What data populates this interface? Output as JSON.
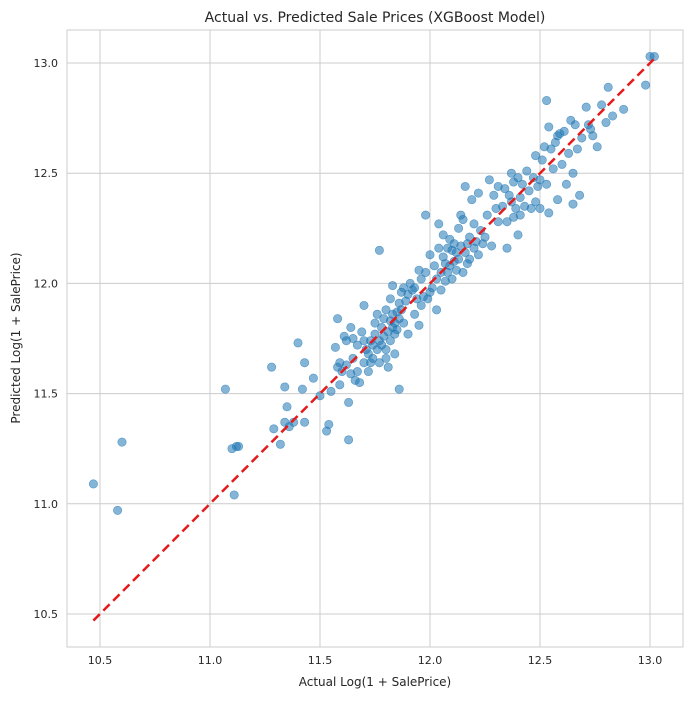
{
  "chart_data": {
    "type": "scatter",
    "title": "Actual vs. Predicted Sale Prices (XGBoost Model)",
    "xlabel": "Actual Log(1 + SalePrice)",
    "ylabel": "Predicted Log(1 + SalePrice)",
    "xlim": [
      10.35,
      13.15
    ],
    "ylim": [
      10.35,
      13.15
    ],
    "xticks": [
      "10.5",
      "11.0",
      "11.5",
      "12.0",
      "12.5",
      "13.0"
    ],
    "yticks": [
      "10.5",
      "11.0",
      "11.5",
      "12.0",
      "12.5",
      "13.0"
    ],
    "grid": true,
    "series": [
      {
        "marker": "circle",
        "color": "#1f77b4",
        "alpha": 0.55,
        "points": [
          [
            10.47,
            11.09
          ],
          [
            10.58,
            10.97
          ],
          [
            10.6,
            11.28
          ],
          [
            11.07,
            11.52
          ],
          [
            11.1,
            11.25
          ],
          [
            11.11,
            11.04
          ],
          [
            11.12,
            11.26
          ],
          [
            11.13,
            11.26
          ],
          [
            11.28,
            11.62
          ],
          [
            11.29,
            11.34
          ],
          [
            11.32,
            11.27
          ],
          [
            11.34,
            11.53
          ],
          [
            11.34,
            11.37
          ],
          [
            11.35,
            11.44
          ],
          [
            11.36,
            11.35
          ],
          [
            11.38,
            11.37
          ],
          [
            11.4,
            11.73
          ],
          [
            11.42,
            11.52
          ],
          [
            11.43,
            11.64
          ],
          [
            11.43,
            11.37
          ],
          [
            11.47,
            11.57
          ],
          [
            11.5,
            11.49
          ],
          [
            11.53,
            11.33
          ],
          [
            11.54,
            11.36
          ],
          [
            11.55,
            11.51
          ],
          [
            11.57,
            11.71
          ],
          [
            11.58,
            11.84
          ],
          [
            11.58,
            11.62
          ],
          [
            11.59,
            11.64
          ],
          [
            11.59,
            11.54
          ],
          [
            11.6,
            11.6
          ],
          [
            11.61,
            11.76
          ],
          [
            11.62,
            11.74
          ],
          [
            11.62,
            11.63
          ],
          [
            11.63,
            11.46
          ],
          [
            11.63,
            11.29
          ],
          [
            11.64,
            11.8
          ],
          [
            11.64,
            11.59
          ],
          [
            11.65,
            11.75
          ],
          [
            11.65,
            11.66
          ],
          [
            11.66,
            11.56
          ],
          [
            11.67,
            11.72
          ],
          [
            11.67,
            11.6
          ],
          [
            11.68,
            11.55
          ],
          [
            11.69,
            11.78
          ],
          [
            11.7,
            11.74
          ],
          [
            11.7,
            11.9
          ],
          [
            11.7,
            11.64
          ],
          [
            11.71,
            11.7
          ],
          [
            11.72,
            11.68
          ],
          [
            11.72,
            11.6
          ],
          [
            11.73,
            11.74
          ],
          [
            11.73,
            11.64
          ],
          [
            11.74,
            11.72
          ],
          [
            11.74,
            11.66
          ],
          [
            11.75,
            11.82
          ],
          [
            11.75,
            11.77
          ],
          [
            11.76,
            11.7
          ],
          [
            11.76,
            11.86
          ],
          [
            11.77,
            11.74
          ],
          [
            11.77,
            11.64
          ],
          [
            11.77,
            12.15
          ],
          [
            11.78,
            11.8
          ],
          [
            11.78,
            11.72
          ],
          [
            11.79,
            11.76
          ],
          [
            11.79,
            11.84
          ],
          [
            11.8,
            11.88
          ],
          [
            11.8,
            11.7
          ],
          [
            11.8,
            11.66
          ],
          [
            11.81,
            11.62
          ],
          [
            11.81,
            11.78
          ],
          [
            11.82,
            11.83
          ],
          [
            11.82,
            11.74
          ],
          [
            11.82,
            11.93
          ],
          [
            11.83,
            11.8
          ],
          [
            11.83,
            11.86
          ],
          [
            11.83,
            11.99
          ],
          [
            11.84,
            11.77
          ],
          [
            11.84,
            11.82
          ],
          [
            11.84,
            11.68
          ],
          [
            11.85,
            11.79
          ],
          [
            11.85,
            11.87
          ],
          [
            11.86,
            11.84
          ],
          [
            11.86,
            11.52
          ],
          [
            11.86,
            11.91
          ],
          [
            11.87,
            11.88
          ],
          [
            11.87,
            11.96
          ],
          [
            11.88,
            11.82
          ],
          [
            11.88,
            11.98
          ],
          [
            11.89,
            11.92
          ],
          [
            11.9,
            11.95
          ],
          [
            11.9,
            11.77
          ],
          [
            11.91,
            12.0
          ],
          [
            11.92,
            11.97
          ],
          [
            11.93,
            11.86
          ],
          [
            11.93,
            11.98
          ],
          [
            11.94,
            11.93
          ],
          [
            11.95,
            11.81
          ],
          [
            11.95,
            12.06
          ],
          [
            11.96,
            11.9
          ],
          [
            11.96,
            12.02
          ],
          [
            11.97,
            11.94
          ],
          [
            11.98,
            12.05
          ],
          [
            11.98,
            12.31
          ],
          [
            11.99,
            11.93
          ],
          [
            12.0,
            11.96
          ],
          [
            12.0,
            12.13
          ],
          [
            12.01,
            11.98
          ],
          [
            12.02,
            12.08
          ],
          [
            12.03,
            11.88
          ],
          [
            12.03,
            12.02
          ],
          [
            12.04,
            12.16
          ],
          [
            12.04,
            12.27
          ],
          [
            12.05,
            12.05
          ],
          [
            12.05,
            11.97
          ],
          [
            12.06,
            12.12
          ],
          [
            12.06,
            12.22
          ],
          [
            12.07,
            12.01
          ],
          [
            12.07,
            12.09
          ],
          [
            12.08,
            12.16
          ],
          [
            12.08,
            12.05
          ],
          [
            12.09,
            12.2
          ],
          [
            12.09,
            12.08
          ],
          [
            12.1,
            12.15
          ],
          [
            12.1,
            12.02
          ],
          [
            12.11,
            12.1
          ],
          [
            12.11,
            12.18
          ],
          [
            12.12,
            12.06
          ],
          [
            12.12,
            12.14
          ],
          [
            12.13,
            12.25
          ],
          [
            12.13,
            12.11
          ],
          [
            12.14,
            12.31
          ],
          [
            12.14,
            12.17
          ],
          [
            12.15,
            12.29
          ],
          [
            12.15,
            12.05
          ],
          [
            12.16,
            12.14
          ],
          [
            12.16,
            12.44
          ],
          [
            12.17,
            12.18
          ],
          [
            12.17,
            12.09
          ],
          [
            12.18,
            12.21
          ],
          [
            12.18,
            12.11
          ],
          [
            12.19,
            12.38
          ],
          [
            12.2,
            12.16
          ],
          [
            12.2,
            12.27
          ],
          [
            12.21,
            12.19
          ],
          [
            12.22,
            12.41
          ],
          [
            12.22,
            12.13
          ],
          [
            12.23,
            12.24
          ],
          [
            12.24,
            12.18
          ],
          [
            12.25,
            12.21
          ],
          [
            12.26,
            12.31
          ],
          [
            12.27,
            12.47
          ],
          [
            12.28,
            12.17
          ],
          [
            12.29,
            12.4
          ],
          [
            12.3,
            12.34
          ],
          [
            12.31,
            12.28
          ],
          [
            12.31,
            12.44
          ],
          [
            12.33,
            12.35
          ],
          [
            12.34,
            12.43
          ],
          [
            12.35,
            12.16
          ],
          [
            12.35,
            12.28
          ],
          [
            12.36,
            12.4
          ],
          [
            12.37,
            12.5
          ],
          [
            12.37,
            12.37
          ],
          [
            12.38,
            12.3
          ],
          [
            12.38,
            12.46
          ],
          [
            12.39,
            12.34
          ],
          [
            12.4,
            12.22
          ],
          [
            12.4,
            12.48
          ],
          [
            12.41,
            12.39
          ],
          [
            12.41,
            12.31
          ],
          [
            12.42,
            12.45
          ],
          [
            12.43,
            12.35
          ],
          [
            12.44,
            12.51
          ],
          [
            12.45,
            12.42
          ],
          [
            12.46,
            12.34
          ],
          [
            12.47,
            12.48
          ],
          [
            12.48,
            12.58
          ],
          [
            12.48,
            12.37
          ],
          [
            12.49,
            12.44
          ],
          [
            12.5,
            12.34
          ],
          [
            12.5,
            12.47
          ],
          [
            12.51,
            12.56
          ],
          [
            12.52,
            12.62
          ],
          [
            12.53,
            12.45
          ],
          [
            12.53,
            12.83
          ],
          [
            12.54,
            12.71
          ],
          [
            12.54,
            12.32
          ],
          [
            12.55,
            12.61
          ],
          [
            12.56,
            12.52
          ],
          [
            12.57,
            12.64
          ],
          [
            12.58,
            12.38
          ],
          [
            12.58,
            12.67
          ],
          [
            12.59,
            12.68
          ],
          [
            12.6,
            12.54
          ],
          [
            12.61,
            12.69
          ],
          [
            12.62,
            12.45
          ],
          [
            12.63,
            12.59
          ],
          [
            12.64,
            12.74
          ],
          [
            12.65,
            12.36
          ],
          [
            12.65,
            12.5
          ],
          [
            12.66,
            12.72
          ],
          [
            12.67,
            12.61
          ],
          [
            12.68,
            12.4
          ],
          [
            12.69,
            12.66
          ],
          [
            12.71,
            12.8
          ],
          [
            12.72,
            12.72
          ],
          [
            12.73,
            12.7
          ],
          [
            12.74,
            12.67
          ],
          [
            12.76,
            12.62
          ],
          [
            12.78,
            12.81
          ],
          [
            12.8,
            12.73
          ],
          [
            12.81,
            12.89
          ],
          [
            12.83,
            12.76
          ],
          [
            12.88,
            12.79
          ],
          [
            12.98,
            12.9
          ],
          [
            13.0,
            13.03
          ],
          [
            13.02,
            13.03
          ]
        ]
      }
    ],
    "reference_line": {
      "style": "dashed",
      "color": "#e41a1c",
      "from": [
        10.47,
        10.47
      ],
      "to": [
        13.03,
        13.03
      ]
    }
  }
}
